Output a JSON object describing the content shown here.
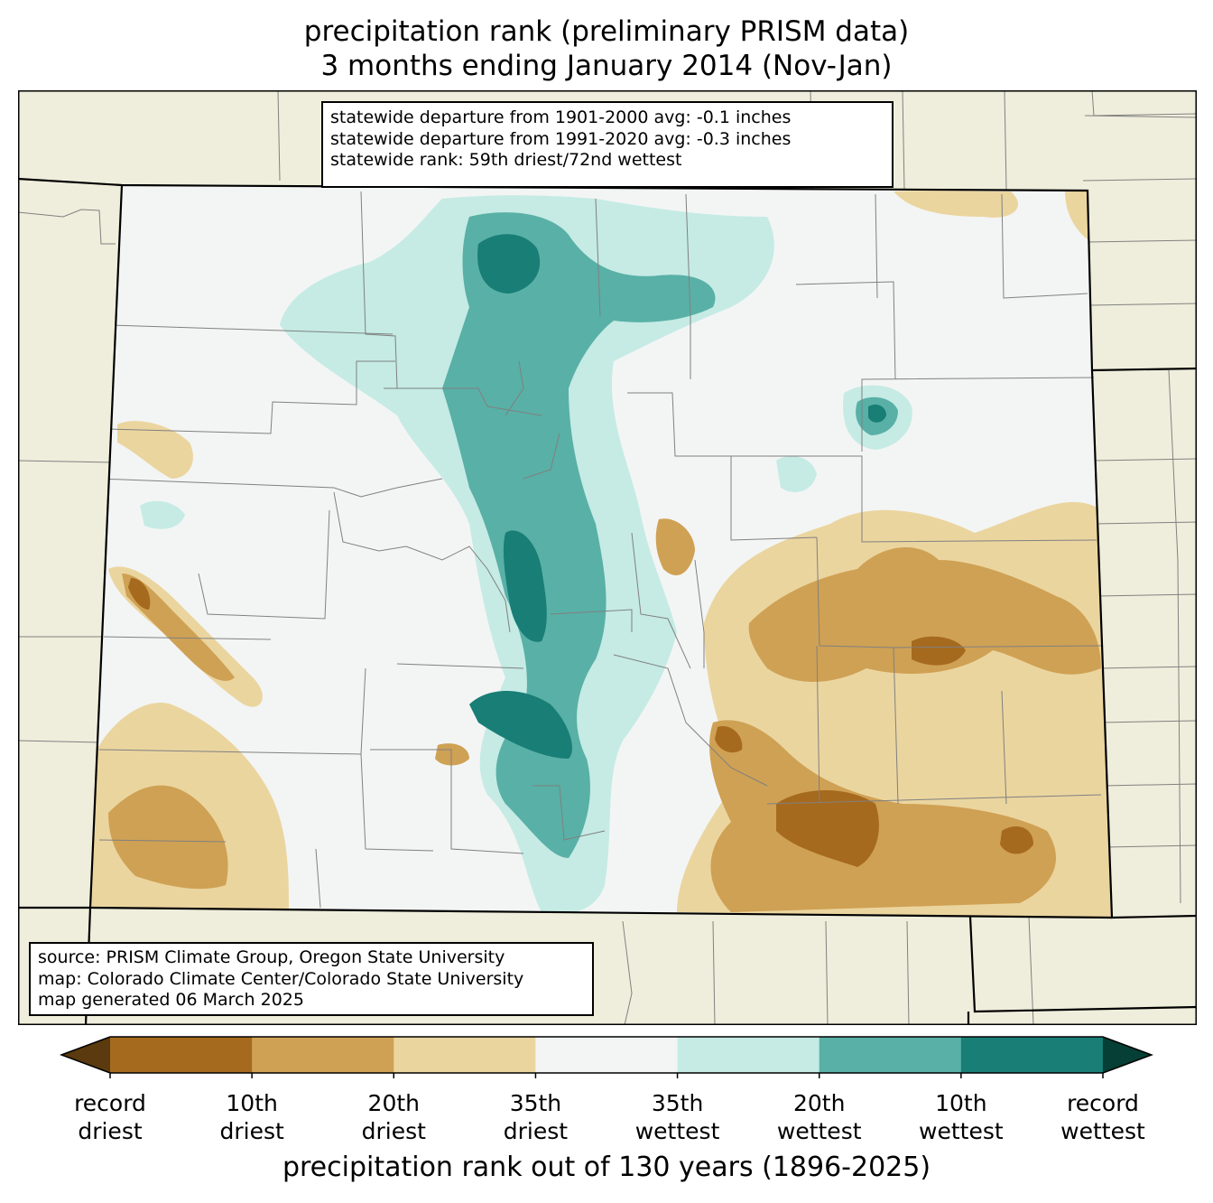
{
  "title": {
    "line1": "precipitation rank (preliminary PRISM data)",
    "line2": "3 months ending January 2014 (Nov-Jan)"
  },
  "stats_box": {
    "line1": "statewide departure from 1901-2000 avg: -0.1 inches",
    "line2": "statewide departure from 1991-2020 avg: -0.3 inches",
    "line3": "statewide rank: 59th driest/72nd wettest"
  },
  "source_box": {
    "line1": "source: PRISM Climate Group, Oregon State University",
    "line2": "map: Colorado Climate Center/Colorado State University",
    "line3": "map generated 06 March 2025"
  },
  "colorbar": {
    "title": "precipitation rank out of 130 years (1896-2025)",
    "bins": [
      {
        "color": "#a66a1e"
      },
      {
        "color": "#cfa154"
      },
      {
        "color": "#ebd59f"
      },
      {
        "color": "#f3f5f4"
      },
      {
        "color": "#c5ebe4"
      },
      {
        "color": "#59b0a6"
      },
      {
        "color": "#187e76"
      }
    ],
    "extend_low_color": "#5a3a0e",
    "extend_high_color": "#053f35",
    "ticks": [
      {
        "line1": "record",
        "line2": "driest"
      },
      {
        "line1": "10th",
        "line2": "driest"
      },
      {
        "line1": "20th",
        "line2": "driest"
      },
      {
        "line1": "35th",
        "line2": "driest"
      },
      {
        "line1": "35th",
        "line2": "wettest"
      },
      {
        "line1": "20th",
        "line2": "wettest"
      },
      {
        "line1": "10th",
        "line2": "wettest"
      },
      {
        "line1": "record",
        "line2": "wettest"
      }
    ]
  },
  "colors": {
    "surrounding_land": "#efeedc",
    "state_fill": "#f3f5f4",
    "county_lines": "#808080"
  }
}
